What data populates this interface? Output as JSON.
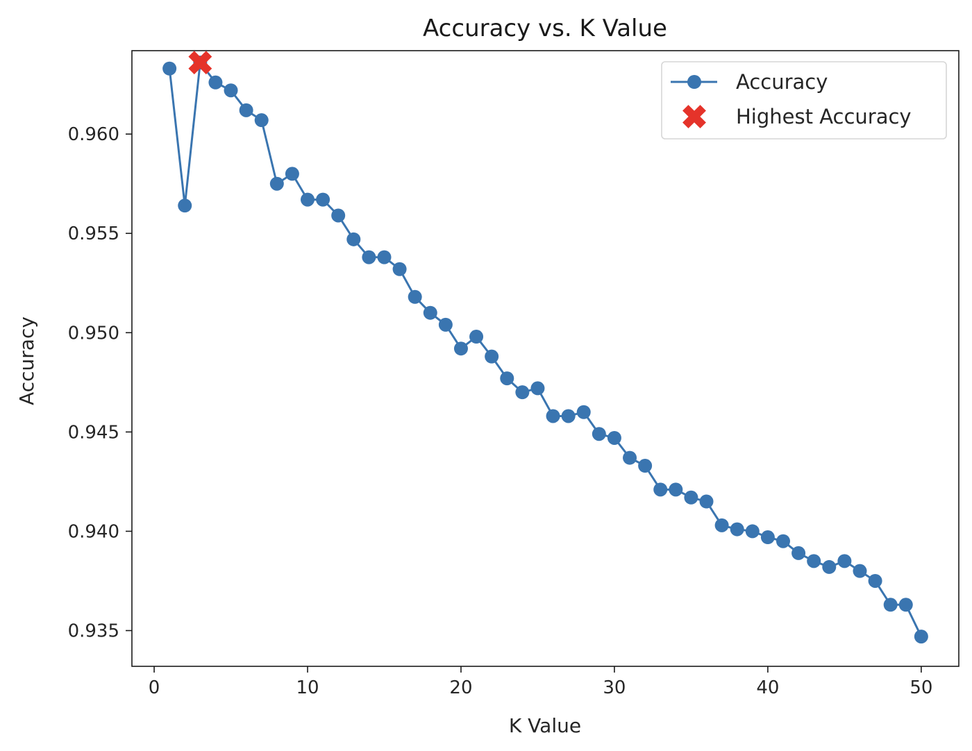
{
  "chart_data": {
    "type": "line",
    "title": "Accuracy vs. K Value",
    "xlabel": "K Value",
    "ylabel": "Accuracy",
    "xlim": [
      -1.45,
      52.45
    ],
    "ylim": [
      0.9332,
      0.9642
    ],
    "xticks": [
      0,
      10,
      20,
      30,
      40,
      50
    ],
    "yticks": [
      0.935,
      0.94,
      0.945,
      0.95,
      0.955,
      0.96
    ],
    "ytick_labels": [
      "0.935",
      "0.940",
      "0.945",
      "0.950",
      "0.955",
      "0.960"
    ],
    "grid": false,
    "legend": {
      "placement": "top-right",
      "entries": [
        "Accuracy",
        "Highest Accuracy"
      ]
    },
    "series": [
      {
        "name": "Accuracy",
        "color": "#3a75b0",
        "marker": "circle",
        "x": [
          1,
          2,
          3,
          4,
          5,
          6,
          7,
          8,
          9,
          10,
          11,
          12,
          13,
          14,
          15,
          16,
          17,
          18,
          19,
          20,
          21,
          22,
          23,
          24,
          25,
          26,
          27,
          28,
          29,
          30,
          31,
          32,
          33,
          34,
          35,
          36,
          37,
          38,
          39,
          40,
          41,
          42,
          43,
          44,
          45,
          46,
          47,
          48,
          49,
          50
        ],
        "y": [
          0.9633,
          0.9564,
          0.9636,
          0.9626,
          0.9622,
          0.9612,
          0.9607,
          0.9575,
          0.958,
          0.9567,
          0.9567,
          0.9559,
          0.9547,
          0.9538,
          0.9538,
          0.9532,
          0.9518,
          0.951,
          0.9504,
          0.9492,
          0.9498,
          0.9488,
          0.9477,
          0.947,
          0.9472,
          0.9458,
          0.9458,
          0.946,
          0.9449,
          0.9447,
          0.9437,
          0.9433,
          0.9421,
          0.9421,
          0.9417,
          0.9415,
          0.9403,
          0.9401,
          0.94,
          0.9397,
          0.9395,
          0.9389,
          0.9385,
          0.9382,
          0.9385,
          0.938,
          0.9375,
          0.9363,
          0.9363,
          0.9347
        ]
      },
      {
        "name": "Highest Accuracy",
        "color": "#e5332a",
        "marker": "x-filled",
        "x": [
          3
        ],
        "y": [
          0.9636
        ]
      }
    ]
  }
}
